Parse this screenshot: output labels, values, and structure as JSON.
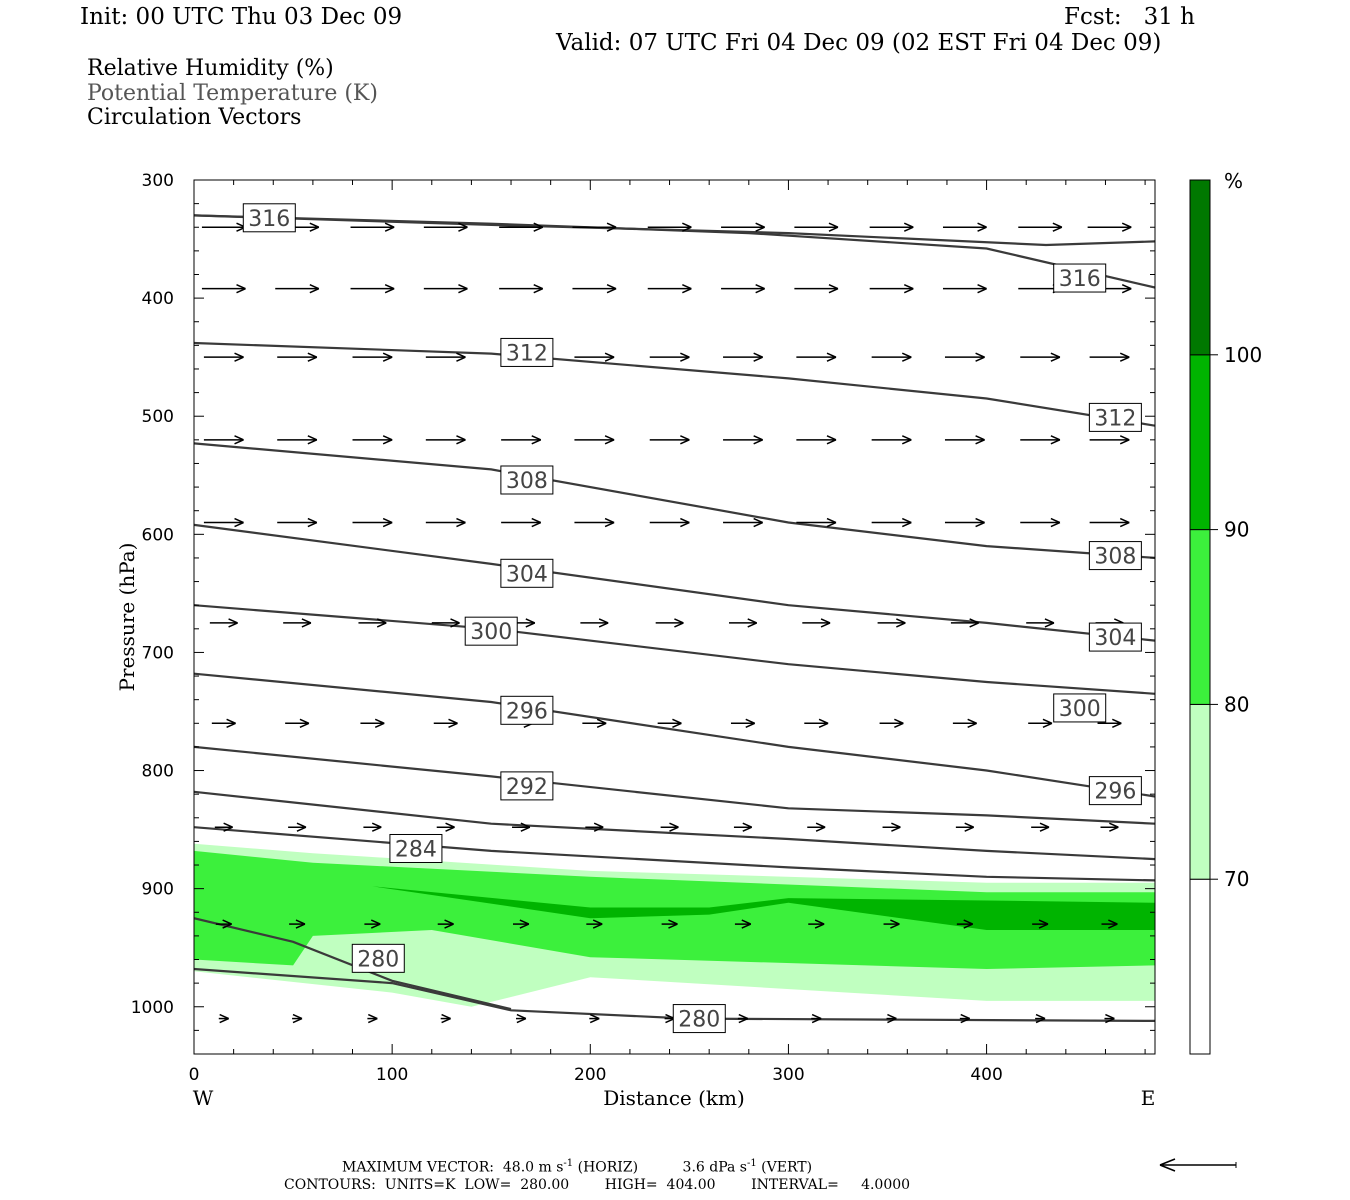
{
  "header": {
    "init": "Init: 00 UTC Thu 03 Dec 09",
    "fcst": "Fcst:   31 h",
    "valid": "Valid: 07 UTC Fri 04 Dec 09 (02 EST Fri 04 Dec 09)"
  },
  "legend": {
    "rh": "Relative Humidity (%)",
    "theta": "Potential Temperature (K)",
    "vectors": "Circulation Vectors"
  },
  "footer": {
    "max_vector_prefix": "MAXIMUM VECTOR:  48.0 m s",
    "max_vector_mid": " (HORIZ)          3.6 dPa s",
    "max_vector_suffix": " (VERT)",
    "exponent": "-1",
    "contours": "CONTOURS:  UNITS=K  LOW=  280.00        HIGH=  404.00        INTERVAL=     4.0000"
  },
  "colors": {
    "rh_70_80": "#c0ffc0",
    "rh_80_90": "#3cf03c",
    "rh_90_100": "#00b400",
    "rh_100": "#007800",
    "contour": "#3a3a3a"
  },
  "chart_data": {
    "type": "cross-section",
    "xlabel": "Distance (km)",
    "ylabel": "Pressure (hPa)",
    "xlim": [
      0,
      485
    ],
    "ylim": [
      1040,
      300
    ],
    "x_ticks": [
      0,
      100,
      200,
      300,
      400
    ],
    "y_ticks": [
      300,
      400,
      500,
      600,
      700,
      800,
      900,
      1000
    ],
    "x_end_labels": {
      "left": "W",
      "right": "E"
    },
    "colorbar": {
      "unit": "%",
      "levels": [
        70,
        80,
        90,
        100
      ],
      "labels": [
        "70",
        "80",
        "90",
        "100"
      ]
    },
    "rh_bands": [
      {
        "min": 70,
        "top": [
          [
            0,
            862
          ],
          [
            60,
            870
          ],
          [
            200,
            885
          ],
          [
            400,
            895
          ],
          [
            485,
            895
          ]
        ],
        "bottom": [
          [
            0,
            970
          ],
          [
            100,
            988
          ],
          [
            140,
            1000
          ],
          [
            200,
            975
          ],
          [
            400,
            995
          ],
          [
            485,
            995
          ]
        ]
      },
      {
        "min": 80,
        "top": [
          [
            0,
            868
          ],
          [
            60,
            878
          ],
          [
            200,
            890
          ],
          [
            400,
            903
          ],
          [
            485,
            903
          ]
        ],
        "bottom": [
          [
            0,
            960
          ],
          [
            50,
            965
          ],
          [
            60,
            940
          ],
          [
            120,
            935
          ],
          [
            200,
            958
          ],
          [
            400,
            968
          ],
          [
            485,
            965
          ]
        ]
      },
      {
        "min": 90,
        "top": [
          [
            90,
            898
          ],
          [
            200,
            916
          ],
          [
            260,
            916
          ],
          [
            300,
            908
          ],
          [
            400,
            910
          ],
          [
            485,
            912
          ]
        ],
        "bottom": [
          [
            90,
            898
          ],
          [
            200,
            925
          ],
          [
            260,
            922
          ],
          [
            300,
            912
          ],
          [
            400,
            935
          ],
          [
            485,
            935
          ]
        ]
      }
    ],
    "isentropes": [
      {
        "value": 316,
        "points": [
          [
            0,
            330
          ],
          [
            150,
            338
          ],
          [
            300,
            345
          ],
          [
            430,
            355
          ],
          [
            485,
            352
          ]
        ]
      },
      {
        "value": 316,
        "points": [
          [
            0,
            330
          ],
          [
            150,
            337
          ],
          [
            280,
            345
          ],
          [
            400,
            358
          ],
          [
            485,
            391
          ]
        ]
      },
      {
        "value": 312,
        "points": [
          [
            0,
            438
          ],
          [
            150,
            447
          ],
          [
            300,
            468
          ],
          [
            400,
            485
          ],
          [
            485,
            508
          ]
        ]
      },
      {
        "value": 308,
        "points": [
          [
            0,
            523
          ],
          [
            150,
            545
          ],
          [
            300,
            590
          ],
          [
            400,
            610
          ],
          [
            485,
            620
          ]
        ]
      },
      {
        "value": 304,
        "points": [
          [
            0,
            592
          ],
          [
            150,
            625
          ],
          [
            300,
            660
          ],
          [
            400,
            675
          ],
          [
            485,
            690
          ]
        ]
      },
      {
        "value": 300,
        "points": [
          [
            0,
            660
          ],
          [
            150,
            680
          ],
          [
            300,
            710
          ],
          [
            400,
            725
          ],
          [
            485,
            735
          ]
        ]
      },
      {
        "value": 296,
        "points": [
          [
            0,
            718
          ],
          [
            150,
            742
          ],
          [
            300,
            780
          ],
          [
            400,
            800
          ],
          [
            485,
            822
          ]
        ]
      },
      {
        "value": 292,
        "points": [
          [
            0,
            780
          ],
          [
            150,
            805
          ],
          [
            300,
            832
          ],
          [
            400,
            838
          ],
          [
            485,
            845
          ]
        ]
      },
      {
        "value": 288,
        "points": [
          [
            0,
            818
          ],
          [
            150,
            845
          ],
          [
            300,
            858
          ],
          [
            400,
            868
          ],
          [
            485,
            875
          ]
        ]
      },
      {
        "value": 284,
        "points": [
          [
            0,
            848
          ],
          [
            150,
            868
          ],
          [
            300,
            882
          ],
          [
            400,
            890
          ],
          [
            485,
            893
          ]
        ]
      },
      {
        "value": 280,
        "points": [
          [
            0,
            925
          ],
          [
            50,
            945
          ],
          [
            100,
            978
          ],
          [
            160,
            1002
          ]
        ]
      },
      {
        "value": 280,
        "points": [
          [
            0,
            968
          ],
          [
            100,
            980
          ],
          [
            160,
            1003
          ],
          [
            250,
            1010
          ],
          [
            485,
            1012
          ]
        ]
      }
    ],
    "contour_labels": [
      {
        "text": "316",
        "x": 38,
        "p": 332
      },
      {
        "text": "316",
        "x": 447,
        "p": 383
      },
      {
        "text": "312",
        "x": 168,
        "p": 446
      },
      {
        "text": "312",
        "x": 465,
        "p": 501
      },
      {
        "text": "308",
        "x": 168,
        "p": 554
      },
      {
        "text": "308",
        "x": 465,
        "p": 618
      },
      {
        "text": "304",
        "x": 168,
        "p": 633
      },
      {
        "text": "304",
        "x": 465,
        "p": 687
      },
      {
        "text": "300",
        "x": 150,
        "p": 682
      },
      {
        "text": "300",
        "x": 447,
        "p": 747
      },
      {
        "text": "296",
        "x": 168,
        "p": 749
      },
      {
        "text": "296",
        "x": 465,
        "p": 817
      },
      {
        "text": "292",
        "x": 168,
        "p": 813
      },
      {
        "text": "284",
        "x": 112,
        "p": 866
      },
      {
        "text": "280",
        "x": 93,
        "p": 959
      },
      {
        "text": "280",
        "x": 255,
        "p": 1010
      }
    ],
    "vector_rows": [
      {
        "p": 340,
        "length_km": 22
      },
      {
        "p": 392,
        "length_km": 22
      },
      {
        "p": 450,
        "length_km": 20
      },
      {
        "p": 520,
        "length_km": 20
      },
      {
        "p": 590,
        "length_km": 20
      },
      {
        "p": 675,
        "length_km": 14
      },
      {
        "p": 760,
        "length_km": 12
      },
      {
        "p": 848,
        "length_km": 9
      },
      {
        "p": 930,
        "length_km": 8
      },
      {
        "p": 1010,
        "length_km": 5
      }
    ],
    "vector_x": [
      15,
      52,
      90,
      127,
      165,
      202,
      240,
      277,
      314,
      352,
      389,
      427,
      462
    ]
  }
}
